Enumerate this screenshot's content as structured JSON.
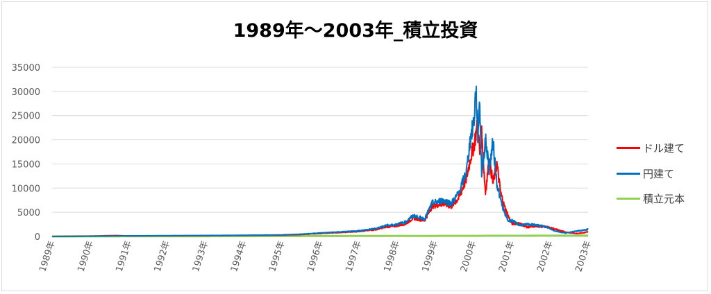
{
  "chart_data": {
    "type": "line",
    "title": "1989年～2003年_積立投資",
    "xlabel": "",
    "ylabel": "",
    "ylim": [
      0,
      35000
    ],
    "yticks": [
      0,
      5000,
      10000,
      15000,
      20000,
      25000,
      30000,
      35000
    ],
    "xlim": [
      1989.0,
      2003.1
    ],
    "x_tick_labels": [
      "1989年",
      "1990年",
      "1991年",
      "1992年",
      "1993年",
      "1994年",
      "1995年",
      "1996年",
      "1997年",
      "1998年",
      "1999年",
      "2000年",
      "2001年",
      "2002年",
      "2003年"
    ],
    "grid": "horizontal",
    "legend_position": "right",
    "series": [
      {
        "name": "ドル建て",
        "color": "#ff0000",
        "x": [
          1989.0,
          1990.0,
          1990.7,
          1991.0,
          1992.0,
          1993.0,
          1994.0,
          1995.0,
          1995.5,
          1996.0,
          1996.5,
          1997.0,
          1997.5,
          1997.8,
          1998.0,
          1998.3,
          1998.5,
          1998.8,
          1999.0,
          1999.3,
          1999.5,
          1999.7,
          1999.9,
          2000.0,
          2000.1,
          2000.2,
          2000.25,
          2000.3,
          2000.4,
          2000.5,
          2000.6,
          2000.7,
          2000.8,
          2000.9,
          2001.0,
          2001.1,
          2001.3,
          2001.5,
          2001.7,
          2002.0,
          2002.2,
          2002.5,
          2002.8,
          2003.0,
          2003.1
        ],
        "y": [
          0,
          80,
          200,
          120,
          150,
          180,
          220,
          280,
          380,
          600,
          800,
          1000,
          1400,
          2000,
          2100,
          2600,
          3800,
          3300,
          6300,
          6800,
          6200,
          8000,
          12000,
          16000,
          19000,
          23500,
          17000,
          21000,
          9000,
          16000,
          11000,
          15000,
          9000,
          6200,
          4200,
          2600,
          2700,
          1900,
          2100,
          2000,
          1600,
          900,
          600,
          800,
          1000
        ]
      },
      {
        "name": "円建て",
        "color": "#0070c0",
        "x": [
          1989.0,
          1990.0,
          1991.0,
          1992.0,
          1993.0,
          1994.0,
          1995.0,
          1995.5,
          1996.0,
          1996.5,
          1997.0,
          1997.5,
          1997.8,
          1998.0,
          1998.3,
          1998.5,
          1998.8,
          1999.0,
          1999.3,
          1999.5,
          1999.7,
          1999.9,
          2000.0,
          2000.1,
          2000.15,
          2000.2,
          2000.25,
          2000.3,
          2000.4,
          2000.5,
          2000.6,
          2000.7,
          2000.8,
          2000.9,
          2001.0,
          2001.1,
          2001.3,
          2001.5,
          2001.7,
          2002.0,
          2002.2,
          2002.5,
          2002.8,
          2003.0,
          2003.1
        ],
        "y": [
          0,
          60,
          130,
          160,
          200,
          240,
          320,
          450,
          700,
          900,
          1100,
          1600,
          2300,
          2400,
          3000,
          4300,
          3600,
          6900,
          7500,
          6800,
          9000,
          13500,
          20000,
          24000,
          30800,
          21000,
          28000,
          13000,
          20000,
          14000,
          19500,
          11000,
          7500,
          4900,
          3200,
          3300,
          2300,
          2500,
          2400,
          2000,
          1200,
          700,
          1100,
          1300,
          1500
        ]
      },
      {
        "name": "積立元本",
        "color": "#92d050",
        "x": [
          1989.0,
          1990.0,
          1991.0,
          1992.0,
          1993.0,
          1994.0,
          1995.0,
          1996.0,
          1997.0,
          1998.0,
          1999.0,
          2000.0,
          2001.0,
          2002.0,
          2003.0,
          2003.1
        ],
        "y": [
          0,
          12,
          24,
          36,
          48,
          60,
          72,
          84,
          96,
          108,
          120,
          132,
          144,
          156,
          168,
          170
        ]
      }
    ]
  }
}
